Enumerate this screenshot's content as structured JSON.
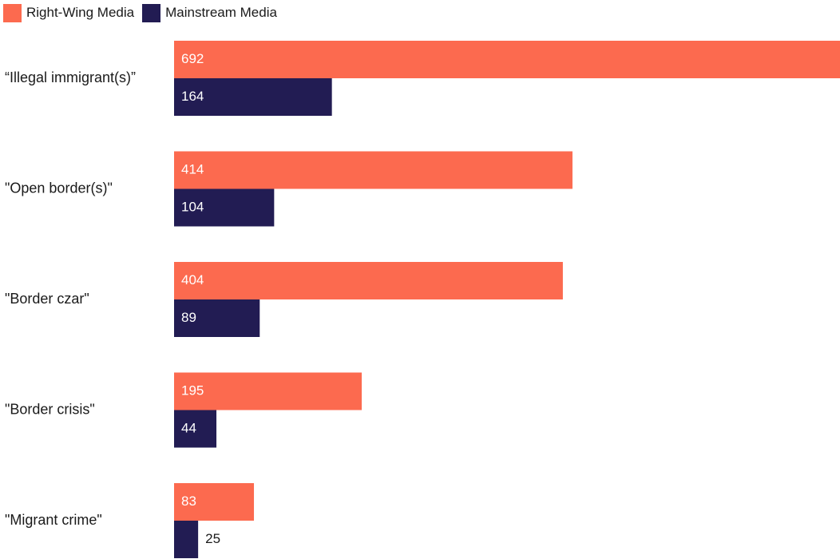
{
  "chart_data": {
    "type": "bar",
    "orientation": "horizontal",
    "categories": [
      "“Illegal immigrant(s)”",
      "\"Open border(s)\"",
      "\"Border czar\"",
      "\"Border crisis\"",
      "\"Migrant crime\""
    ],
    "series": [
      {
        "name": "Right-Wing Media",
        "color": "#fc6a4f",
        "values": [
          692,
          414,
          404,
          195,
          83
        ]
      },
      {
        "name": "Mainstream Media",
        "color": "#221c53",
        "values": [
          164,
          104,
          89,
          44,
          25
        ]
      }
    ],
    "xlim": [
      0,
      692
    ],
    "data_labels": true,
    "legend": "top-left",
    "grid": false
  }
}
